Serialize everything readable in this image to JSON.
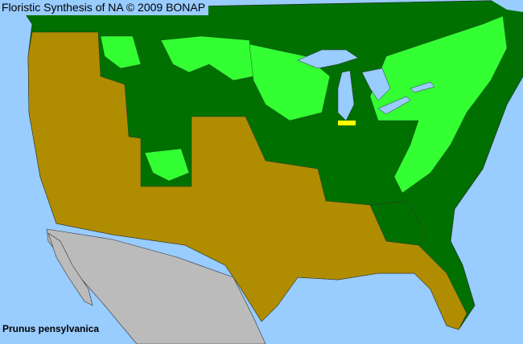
{
  "header": {
    "title": "Floristic Synthesis of NA © 2009 BONAP"
  },
  "species": {
    "name": "Prunus pensylvanica"
  },
  "legend_colors": {
    "water": "#99ccff",
    "canada": "#007000",
    "present_in_state": "#007000",
    "present_in_county": "#33ff33",
    "absent": "#b08c00",
    "rare": "#ffff00",
    "outside_range": "#bbbbbb"
  }
}
